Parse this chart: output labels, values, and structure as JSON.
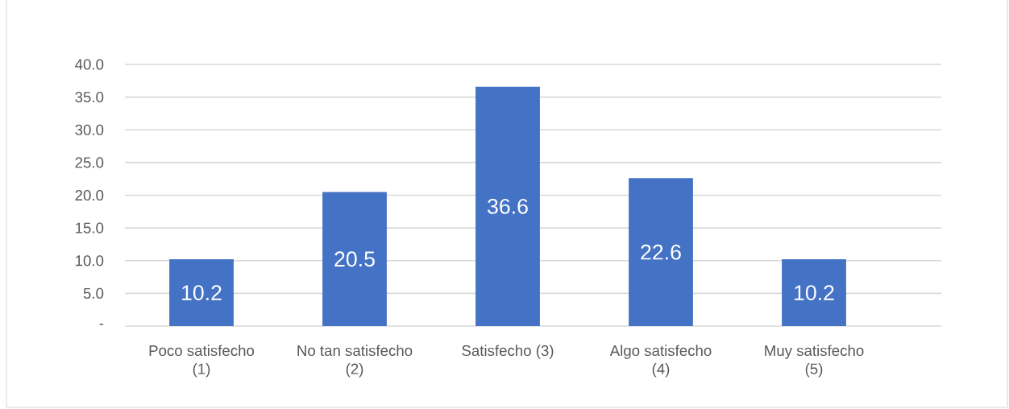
{
  "chart_data": {
    "type": "bar",
    "categories": [
      "Poco satisfecho (1)",
      "No tan satisfecho (2)",
      "Satisfecho (3)",
      "Algo satisfecho (4)",
      "Muy satisfecho (5)"
    ],
    "values": [
      10.2,
      20.5,
      36.6,
      22.6,
      10.2
    ],
    "color": "#4472c4",
    "ylim": [
      0,
      40
    ],
    "yticks": [
      {
        "value": 0,
        "label": "-"
      },
      {
        "value": 5,
        "label": "5.0"
      },
      {
        "value": 10,
        "label": "10.0"
      },
      {
        "value": 15,
        "label": "15.0"
      },
      {
        "value": 20,
        "label": "20.0"
      },
      {
        "value": 25,
        "label": "25.0"
      },
      {
        "value": 30,
        "label": "30.0"
      },
      {
        "value": 35,
        "label": "35.0"
      },
      {
        "value": 40,
        "label": "40.0"
      }
    ],
    "grid": "y",
    "data_labels": true
  }
}
